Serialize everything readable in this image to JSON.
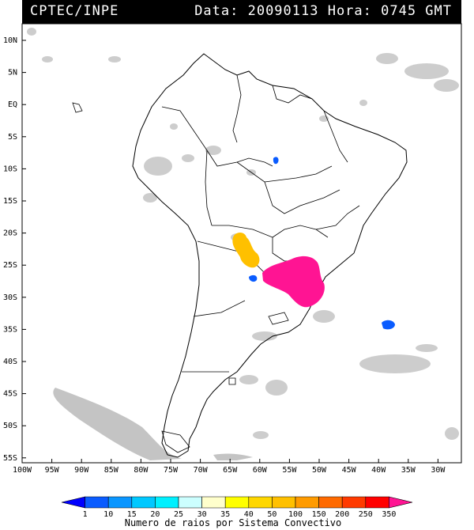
{
  "header": {
    "source": "CPTEC/INPE",
    "datetime": "Data: 20090113 Hora: 0745 GMT"
  },
  "map": {
    "lat_labels": [
      "10N",
      "5N",
      "EQ",
      "5S",
      "10S",
      "15S",
      "20S",
      "25S",
      "30S",
      "35S",
      "40S",
      "45S",
      "50S",
      "55S"
    ],
    "lon_labels": [
      "100W",
      "95W",
      "90W",
      "85W",
      "80W",
      "75W",
      "70W",
      "65W",
      "60W",
      "55W",
      "50W",
      "45W",
      "40W",
      "35W",
      "30W"
    ]
  },
  "legend": {
    "ticks": [
      "1",
      "10",
      "15",
      "20",
      "25",
      "30",
      "35",
      "40",
      "50",
      "100",
      "150",
      "200",
      "250",
      "350"
    ],
    "caption": "Numero de raios por Sistema Convectivo",
    "colors": [
      "#0000ff",
      "#0a5cff",
      "#0a96ff",
      "#00c8ff",
      "#00f0ff",
      "#ccffff",
      "#ffffcc",
      "#ffff00",
      "#ffd700",
      "#ffc000",
      "#ff9b00",
      "#ff6a00",
      "#ff3a00",
      "#ff0000",
      "#ff1493"
    ]
  },
  "clusters": {
    "yellow_color": "#ffc000",
    "magenta_color": "#ff1493",
    "blue_color": "#0a5cff"
  }
}
